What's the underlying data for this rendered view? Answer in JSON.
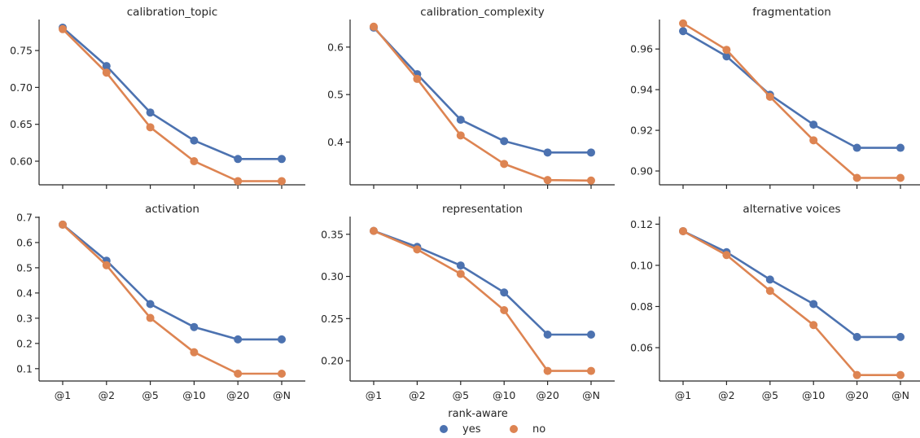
{
  "chart_data": [
    {
      "type": "line",
      "title": "calibration_topic",
      "categories": [
        "@1",
        "@2",
        "@5",
        "@10",
        "@20",
        "@N"
      ],
      "yticks": [
        "0.60",
        "0.65",
        "0.70",
        "0.75"
      ],
      "ylim": [
        0.568,
        0.792
      ],
      "series": [
        {
          "name": "yes",
          "values": [
            0.781,
            0.729,
            0.666,
            0.628,
            0.603,
            0.603
          ]
        },
        {
          "name": "no",
          "values": [
            0.779,
            0.72,
            0.646,
            0.6,
            0.573,
            0.573
          ]
        }
      ]
    },
    {
      "type": "line",
      "title": "calibration_complexity",
      "categories": [
        "@1",
        "@2",
        "@5",
        "@10",
        "@20",
        "@N"
      ],
      "yticks": [
        "0.4",
        "0.5",
        "0.6"
      ],
      "ylim": [
        0.31,
        0.658
      ],
      "series": [
        {
          "name": "yes",
          "values": [
            0.641,
            0.543,
            0.447,
            0.402,
            0.378,
            0.378
          ]
        },
        {
          "name": "no",
          "values": [
            0.643,
            0.533,
            0.414,
            0.354,
            0.32,
            0.319
          ]
        }
      ]
    },
    {
      "type": "line",
      "title": "fragmentation",
      "categories": [
        "@1",
        "@2",
        "@5",
        "@10",
        "@20",
        "@N"
      ],
      "yticks": [
        "0.90",
        "0.92",
        "0.94",
        "0.96"
      ],
      "ylim": [
        0.8932,
        0.9745
      ],
      "series": [
        {
          "name": "yes",
          "values": [
            0.9688,
            0.9564,
            0.9375,
            0.9228,
            0.9114,
            0.9114
          ]
        },
        {
          "name": "no",
          "values": [
            0.9726,
            0.9596,
            0.9365,
            0.9151,
            0.8966,
            0.8966
          ]
        }
      ]
    },
    {
      "type": "line",
      "title": "activation",
      "categories": [
        "@1",
        "@2",
        "@5",
        "@10",
        "@20",
        "@N"
      ],
      "yticks": [
        "0.1",
        "0.2",
        "0.3",
        "0.4",
        "0.5",
        "0.6",
        "0.7"
      ],
      "ylim": [
        0.051,
        0.703
      ],
      "series": [
        {
          "name": "yes",
          "values": [
            0.671,
            0.528,
            0.356,
            0.265,
            0.216,
            0.216
          ]
        },
        {
          "name": "no",
          "values": [
            0.671,
            0.51,
            0.301,
            0.165,
            0.08,
            0.08
          ]
        }
      ]
    },
    {
      "type": "line",
      "title": "representation",
      "categories": [
        "@1",
        "@2",
        "@5",
        "@10",
        "@20",
        "@N"
      ],
      "yticks": [
        "0.20",
        "0.25",
        "0.30",
        "0.35"
      ],
      "ylim": [
        0.176,
        0.371
      ],
      "series": [
        {
          "name": "yes",
          "values": [
            0.354,
            0.335,
            0.313,
            0.281,
            0.231,
            0.231
          ]
        },
        {
          "name": "no",
          "values": [
            0.354,
            0.332,
            0.303,
            0.26,
            0.188,
            0.188
          ]
        }
      ]
    },
    {
      "type": "line",
      "title": "alternative voices",
      "categories": [
        "@1",
        "@2",
        "@5",
        "@10",
        "@20",
        "@N"
      ],
      "yticks": [
        "0.06",
        "0.08",
        "0.10",
        "0.12"
      ],
      "ylim": [
        0.0438,
        0.1237
      ],
      "series": [
        {
          "name": "yes",
          "values": [
            0.1166,
            0.1064,
            0.0931,
            0.0812,
            0.0652,
            0.0652
          ]
        },
        {
          "name": "no",
          "values": [
            0.1166,
            0.105,
            0.0876,
            0.071,
            0.0467,
            0.0467
          ]
        }
      ]
    }
  ],
  "legend": {
    "title": "rank-aware",
    "items": [
      {
        "label": "yes",
        "color": "#4c72b0"
      },
      {
        "label": "no",
        "color": "#dd8452"
      }
    ]
  },
  "colors": {
    "yes": "#4c72b0",
    "no": "#dd8452",
    "axis": "#262626"
  }
}
